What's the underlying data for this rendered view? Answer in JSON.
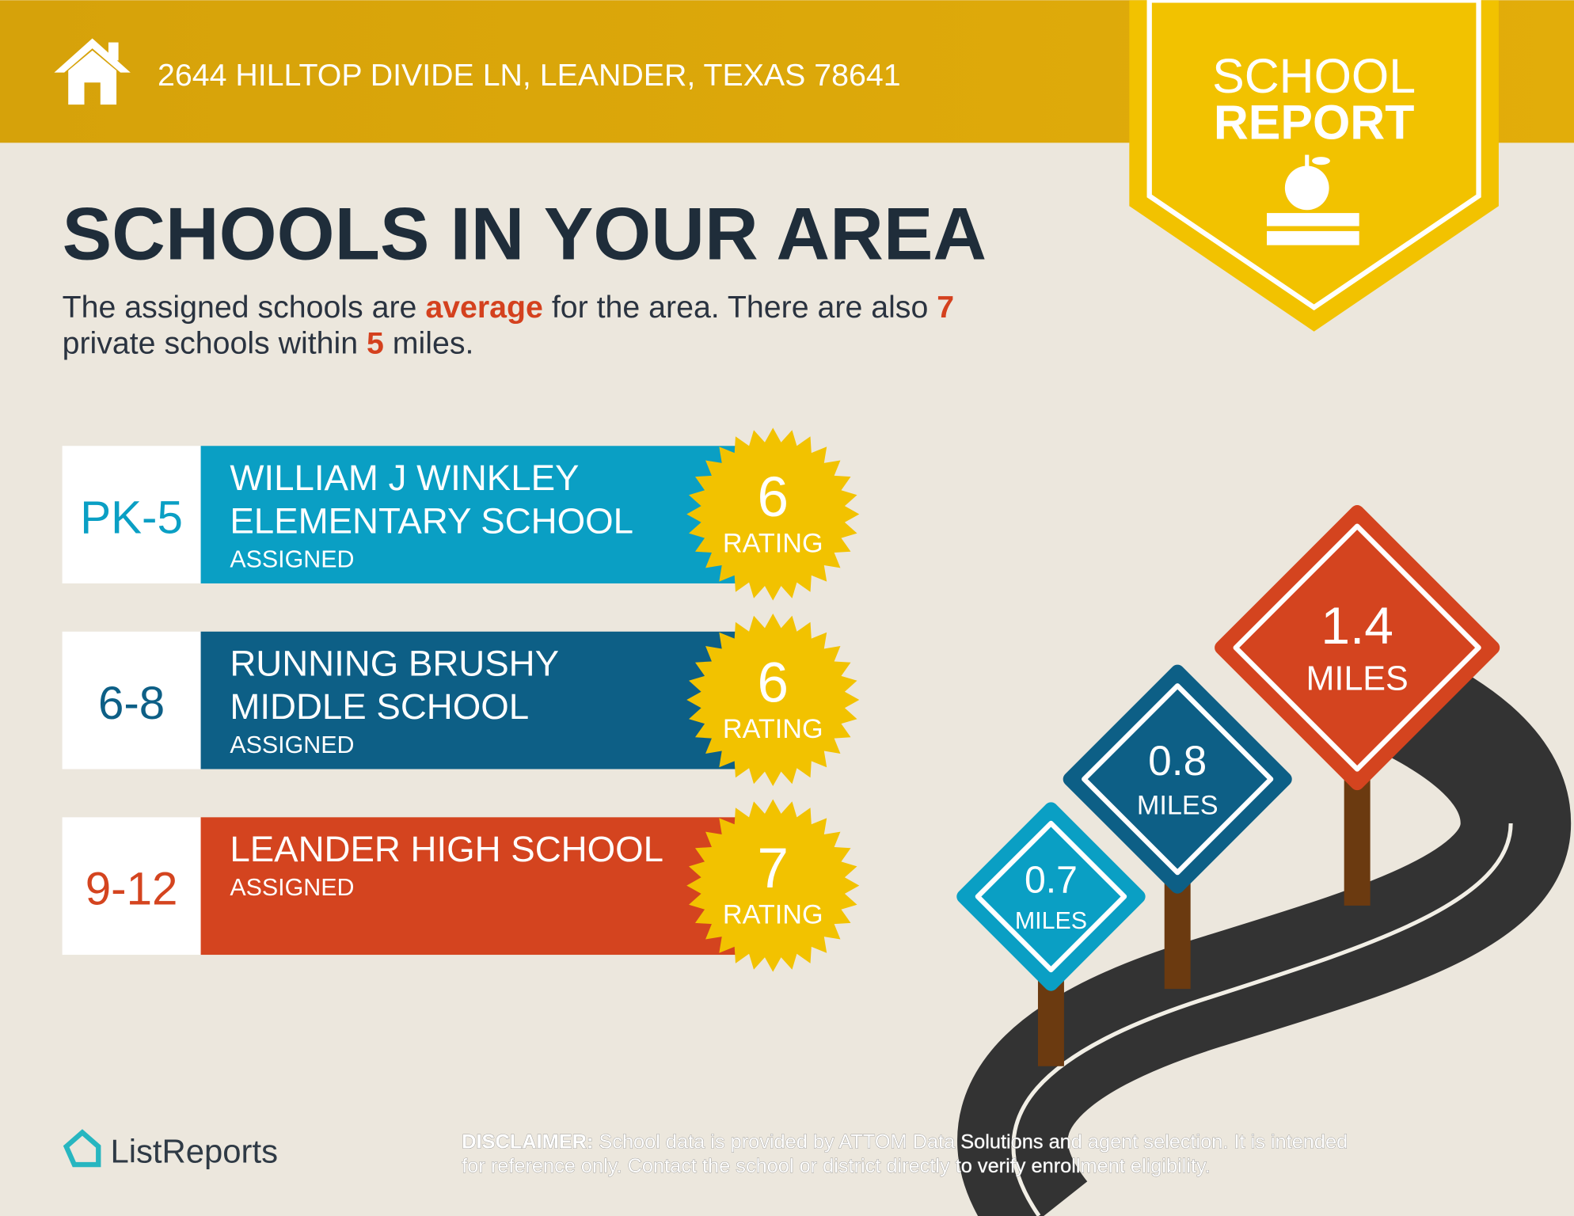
{
  "header": {
    "address": "2644 HILLTOP DIVIDE LN, LEANDER, TEXAS 78641"
  },
  "badge": {
    "line1": "SCHOOL",
    "line2": "REPORT"
  },
  "title": "SCHOOLS IN YOUR AREA",
  "summary": {
    "part1": "The assigned schools are ",
    "quality": "average",
    "part2": " for the area. There are also ",
    "private_count": 7,
    "part3": "private schools within ",
    "radius": 5,
    "part4": " miles."
  },
  "schools": [
    {
      "grade": "PK-5",
      "name_lines": [
        "WILLIAM J WINKLEY",
        "ELEMENTARY SCHOOL"
      ],
      "status": "ASSIGNED",
      "rating": 6,
      "rating_label": "RATING"
    },
    {
      "grade": "6-8",
      "name_lines": [
        "RUNNING BRUSHY",
        "MIDDLE SCHOOL"
      ],
      "status": "ASSIGNED",
      "rating": 6,
      "rating_label": "RATING"
    },
    {
      "grade": "9-12",
      "name_lines": [
        "LEANDER HIGH SCHOOL"
      ],
      "status": "ASSIGNED",
      "rating": 7,
      "rating_label": "RATING"
    }
  ],
  "signs": [
    {
      "distance": 0.7,
      "unit": "MILES"
    },
    {
      "distance": 0.8,
      "unit": "MILES"
    },
    {
      "distance": 1.4,
      "unit": "MILES"
    }
  ],
  "footer": {
    "brand": "ListReports",
    "disclaimer_label": "DISCLAIMER:",
    "disclaimer_line1": " School data is provided by ATTOM Data Solutions and agent selection. It is intended",
    "disclaimer_line2": "for reference only. Contact the school or district directly to verify enrollment eligibility."
  }
}
